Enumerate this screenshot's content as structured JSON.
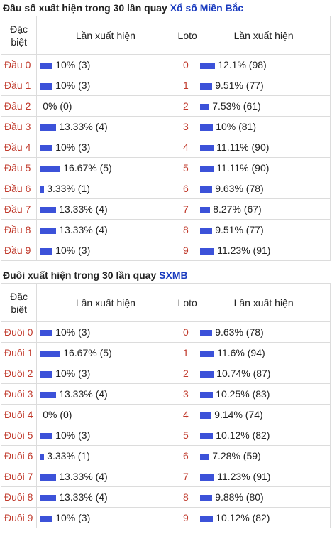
{
  "section1": {
    "title_prefix": "Đầu số xuất hiện trong 30 lần quay",
    "title_link": "Xổ số Miền Bắc",
    "headers": [
      "Đặc biệt",
      "Lần xuất hiện",
      "Loto",
      "Lần xuất hiện"
    ],
    "rows": [
      {
        "label": "Đầu 0",
        "sp_text": "10% (3)",
        "sp_pct": 10,
        "num": "0",
        "lo_text": "12.1% (98)",
        "lo_pct": 12.1
      },
      {
        "label": "Đầu 1",
        "sp_text": "10% (3)",
        "sp_pct": 10,
        "num": "1",
        "lo_text": "9.51% (77)",
        "lo_pct": 9.51
      },
      {
        "label": "Đầu 2",
        "sp_text": "0% (0)",
        "sp_pct": 0,
        "num": "2",
        "lo_text": "7.53% (61)",
        "lo_pct": 7.53
      },
      {
        "label": "Đầu 3",
        "sp_text": "13.33% (4)",
        "sp_pct": 13.33,
        "num": "3",
        "lo_text": "10% (81)",
        "lo_pct": 10
      },
      {
        "label": "Đầu 4",
        "sp_text": "10% (3)",
        "sp_pct": 10,
        "num": "4",
        "lo_text": "11.11% (90)",
        "lo_pct": 11.11
      },
      {
        "label": "Đầu 5",
        "sp_text": "16.67% (5)",
        "sp_pct": 16.67,
        "num": "5",
        "lo_text": "11.11% (90)",
        "lo_pct": 11.11
      },
      {
        "label": "Đầu 6",
        "sp_text": "3.33% (1)",
        "sp_pct": 3.33,
        "num": "6",
        "lo_text": "9.63% (78)",
        "lo_pct": 9.63
      },
      {
        "label": "Đầu 7",
        "sp_text": "13.33% (4)",
        "sp_pct": 13.33,
        "num": "7",
        "lo_text": "8.27% (67)",
        "lo_pct": 8.27
      },
      {
        "label": "Đầu 8",
        "sp_text": "13.33% (4)",
        "sp_pct": 13.33,
        "num": "8",
        "lo_text": "9.51% (77)",
        "lo_pct": 9.51
      },
      {
        "label": "Đầu 9",
        "sp_text": "10% (3)",
        "sp_pct": 10,
        "num": "9",
        "lo_text": "11.23% (91)",
        "lo_pct": 11.23
      }
    ]
  },
  "section2": {
    "title_prefix": "Đuôi xuất hiện trong 30 lần quay",
    "title_link": "SXMB",
    "headers": [
      "Đặc biệt",
      "Lần xuất hiện",
      "Loto",
      "Lần xuất hiện"
    ],
    "rows": [
      {
        "label": "Đuôi 0",
        "sp_text": "10% (3)",
        "sp_pct": 10,
        "num": "0",
        "lo_text": "9.63% (78)",
        "lo_pct": 9.63
      },
      {
        "label": "Đuôi 1",
        "sp_text": "16.67% (5)",
        "sp_pct": 16.67,
        "num": "1",
        "lo_text": "11.6% (94)",
        "lo_pct": 11.6
      },
      {
        "label": "Đuôi 2",
        "sp_text": "10% (3)",
        "sp_pct": 10,
        "num": "2",
        "lo_text": "10.74% (87)",
        "lo_pct": 10.74
      },
      {
        "label": "Đuôi 3",
        "sp_text": "13.33% (4)",
        "sp_pct": 13.33,
        "num": "3",
        "lo_text": "10.25% (83)",
        "lo_pct": 10.25
      },
      {
        "label": "Đuôi 4",
        "sp_text": "0% (0)",
        "sp_pct": 0,
        "num": "4",
        "lo_text": "9.14% (74)",
        "lo_pct": 9.14
      },
      {
        "label": "Đuôi 5",
        "sp_text": "10% (3)",
        "sp_pct": 10,
        "num": "5",
        "lo_text": "10.12% (82)",
        "lo_pct": 10.12
      },
      {
        "label": "Đuôi 6",
        "sp_text": "3.33% (1)",
        "sp_pct": 3.33,
        "num": "6",
        "lo_text": "7.28% (59)",
        "lo_pct": 7.28
      },
      {
        "label": "Đuôi 7",
        "sp_text": "13.33% (4)",
        "sp_pct": 13.33,
        "num": "7",
        "lo_text": "11.23% (91)",
        "lo_pct": 11.23
      },
      {
        "label": "Đuôi 8",
        "sp_text": "13.33% (4)",
        "sp_pct": 13.33,
        "num": "8",
        "lo_text": "9.88% (80)",
        "lo_pct": 9.88
      },
      {
        "label": "Đuôi 9",
        "sp_text": "10% (3)",
        "sp_pct": 10,
        "num": "9",
        "lo_text": "10.12% (82)",
        "lo_pct": 10.12
      }
    ]
  },
  "colors": {
    "label_red": "#c0392b",
    "bar_blue": "#3c52d9",
    "link_blue": "#1a3bbf",
    "border": "#dcdcdc"
  }
}
